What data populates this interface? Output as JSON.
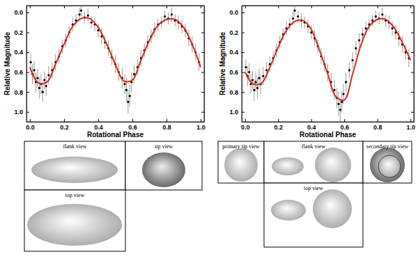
{
  "chart_data": [
    {
      "type": "scatter",
      "x_label": "Rotational Phase",
      "y_label": "Relative Magnitude",
      "xlim": [
        -0.02,
        1.02
      ],
      "ylim": [
        1.1,
        -0.07
      ],
      "xticks": [
        {
          "value": 0,
          "label": "0.0"
        },
        0.2,
        0.4,
        0.6,
        0.8,
        {
          "value": 1,
          "label": "1.0"
        }
      ],
      "yticks": [
        {
          "value": 0,
          "label": "0.0"
        },
        0.2,
        0.4,
        0.6,
        0.8,
        {
          "value": 1,
          "label": "1.0"
        }
      ],
      "series": [
        {
          "type": "scatter",
          "color": "#000000",
          "marker": "circle",
          "x": [
            0.005,
            0.015,
            0.025,
            0.035,
            0.045,
            0.055,
            0.065,
            0.075,
            0.085,
            0.095,
            0.11,
            0.13,
            0.15,
            0.17,
            0.19,
            0.21,
            0.23,
            0.25,
            0.27,
            0.29,
            0.3,
            0.32,
            0.34,
            0.36,
            0.38,
            0.4,
            0.42,
            0.44,
            0.46,
            0.48,
            0.5,
            0.52,
            0.54,
            0.555,
            0.565,
            0.575,
            0.585,
            0.595,
            0.61,
            0.63,
            0.65,
            0.67,
            0.69,
            0.71,
            0.73,
            0.75,
            0.77,
            0.79,
            0.81,
            0.83,
            0.85,
            0.87,
            0.89,
            0.91,
            0.93,
            0.95,
            0.97,
            0.99
          ],
          "values": [
            0.5,
            0.62,
            0.58,
            0.7,
            0.66,
            0.76,
            0.72,
            0.8,
            0.68,
            0.74,
            0.63,
            0.58,
            0.5,
            0.44,
            0.34,
            0.28,
            0.2,
            0.12,
            0.08,
            0.02,
            -0.02,
            0.05,
            0.03,
            0.1,
            0.12,
            0.18,
            0.24,
            0.3,
            0.36,
            0.45,
            0.52,
            0.6,
            0.66,
            0.72,
            0.78,
            0.9,
            0.84,
            0.7,
            0.62,
            0.55,
            0.46,
            0.38,
            0.3,
            0.24,
            0.17,
            0.12,
            0.1,
            0.04,
            0.06,
            0.02,
            0.08,
            0.1,
            0.14,
            0.18,
            0.26,
            0.32,
            0.4,
            0.5
          ],
          "errors": [
            0.08,
            0.1,
            0.09,
            0.1,
            0.09,
            0.11,
            0.1,
            0.1,
            0.09,
            0.1,
            0.09,
            0.08,
            0.08,
            0.07,
            0.07,
            0.07,
            0.06,
            0.07,
            0.06,
            0.07,
            0.06,
            0.06,
            0.07,
            0.06,
            0.07,
            0.07,
            0.08,
            0.07,
            0.08,
            0.08,
            0.09,
            0.09,
            0.1,
            0.1,
            0.12,
            0.12,
            0.11,
            0.1,
            0.09,
            0.08,
            0.08,
            0.07,
            0.07,
            0.07,
            0.07,
            0.06,
            0.06,
            0.06,
            0.06,
            0.07,
            0.06,
            0.07,
            0.07,
            0.07,
            0.08,
            0.08,
            0.08,
            0.09
          ]
        },
        {
          "type": "line",
          "color": "#d42a1e",
          "line_style": "solid",
          "x": [
            0,
            0.05,
            0.1,
            0.15,
            0.2,
            0.25,
            0.3,
            0.35,
            0.4,
            0.45,
            0.5,
            0.55,
            0.6,
            0.65,
            0.7,
            0.75,
            0.8,
            0.85,
            0.9,
            0.95,
            1
          ],
          "values": [
            0.55,
            0.71,
            0.7,
            0.52,
            0.32,
            0.14,
            0.06,
            0.06,
            0.15,
            0.32,
            0.52,
            0.69,
            0.68,
            0.48,
            0.28,
            0.13,
            0.07,
            0.07,
            0.15,
            0.32,
            0.55
          ]
        }
      ]
    },
    {
      "type": "scatter",
      "x_label": "Rotational Phase",
      "y_label": "Relative Magnitude",
      "xlim": [
        -0.02,
        1.02
      ],
      "ylim": [
        1.1,
        -0.07
      ],
      "xticks": [
        {
          "value": 0,
          "label": "0.0"
        },
        0.2,
        0.4,
        0.6,
        0.8,
        {
          "value": 1,
          "label": "1.0"
        }
      ],
      "yticks": [
        {
          "value": 0,
          "label": "0.0"
        },
        0.2,
        0.4,
        0.6,
        0.8,
        {
          "value": 1,
          "label": "1.0"
        }
      ],
      "series": [
        {
          "type": "scatter",
          "color": "#000000",
          "marker": "circle",
          "x": [
            0.005,
            0.015,
            0.025,
            0.035,
            0.045,
            0.055,
            0.065,
            0.075,
            0.085,
            0.095,
            0.11,
            0.13,
            0.15,
            0.17,
            0.19,
            0.21,
            0.23,
            0.25,
            0.27,
            0.29,
            0.3,
            0.32,
            0.34,
            0.36,
            0.38,
            0.4,
            0.42,
            0.44,
            0.46,
            0.48,
            0.5,
            0.52,
            0.54,
            0.555,
            0.565,
            0.575,
            0.585,
            0.595,
            0.61,
            0.63,
            0.65,
            0.67,
            0.69,
            0.71,
            0.73,
            0.75,
            0.77,
            0.79,
            0.81,
            0.83,
            0.85,
            0.87,
            0.89,
            0.91,
            0.93,
            0.95,
            0.97,
            0.99
          ],
          "values": [
            0.55,
            0.64,
            0.6,
            0.72,
            0.68,
            0.78,
            0.7,
            0.76,
            0.66,
            0.72,
            0.64,
            0.58,
            0.52,
            0.46,
            0.38,
            0.3,
            0.22,
            0.16,
            0.12,
            0.06,
            -0.02,
            0.04,
            0.08,
            0.1,
            0.14,
            0.2,
            0.26,
            0.34,
            0.44,
            0.52,
            0.6,
            0.7,
            0.78,
            0.86,
            0.92,
            0.98,
            0.9,
            0.82,
            0.7,
            0.58,
            0.48,
            0.36,
            0.28,
            0.22,
            0.16,
            0.12,
            0.08,
            0.04,
            0.06,
            0.02,
            0.08,
            0.1,
            0.16,
            0.2,
            0.26,
            0.32,
            0.4,
            0.46
          ],
          "errors": [
            0.08,
            0.1,
            0.09,
            0.1,
            0.09,
            0.11,
            0.1,
            0.1,
            0.09,
            0.1,
            0.09,
            0.08,
            0.08,
            0.07,
            0.07,
            0.07,
            0.06,
            0.07,
            0.06,
            0.07,
            0.06,
            0.06,
            0.07,
            0.06,
            0.07,
            0.07,
            0.08,
            0.07,
            0.08,
            0.08,
            0.09,
            0.09,
            0.1,
            0.1,
            0.12,
            0.12,
            0.11,
            0.1,
            0.09,
            0.08,
            0.08,
            0.07,
            0.07,
            0.07,
            0.07,
            0.06,
            0.06,
            0.06,
            0.06,
            0.07,
            0.06,
            0.07,
            0.07,
            0.07,
            0.08,
            0.08,
            0.08,
            0.09
          ]
        },
        {
          "type": "line",
          "color": "#d42a1e",
          "line_style": "solid",
          "x": [
            0,
            0.05,
            0.1,
            0.15,
            0.2,
            0.25,
            0.3,
            0.35,
            0.4,
            0.45,
            0.5,
            0.55,
            0.6,
            0.65,
            0.7,
            0.75,
            0.8,
            0.85,
            0.9,
            0.95,
            1
          ],
          "values": [
            0.6,
            0.72,
            0.71,
            0.55,
            0.35,
            0.18,
            0.09,
            0.08,
            0.17,
            0.38,
            0.62,
            0.85,
            0.88,
            0.62,
            0.33,
            0.14,
            0.07,
            0.07,
            0.15,
            0.3,
            0.48
          ]
        }
      ]
    }
  ],
  "shape_models": [
    {
      "panels": [
        {
          "label": "flank view"
        },
        {
          "label": "tip view"
        },
        {
          "label": "top view"
        }
      ]
    },
    {
      "panels": [
        {
          "label": "primary tip view"
        },
        {
          "label": "flank view"
        },
        {
          "label": "secondary tip view"
        },
        {
          "label": "top view"
        }
      ]
    }
  ]
}
